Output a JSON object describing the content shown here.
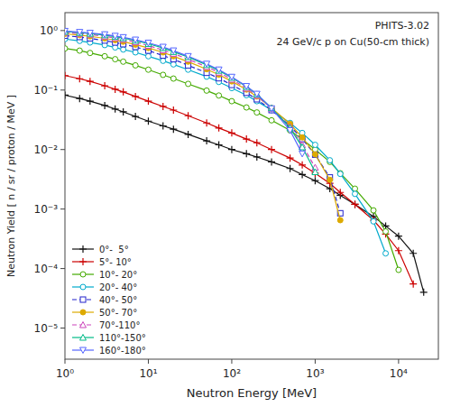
{
  "chart_data": {
    "type": "line",
    "log": true,
    "grid": false,
    "legend": "lower left",
    "annotations": [
      "PHITS-3.02",
      "24 GeV/c  p on Cu(50-cm thick)"
    ],
    "x_label": "Neutron Energy [MeV]",
    "y_label": "Neutron Yield [ n / sr / proton / MeV ]",
    "xlim": [
      1,
      30000
    ],
    "ylim": [
      3e-06,
      2
    ],
    "xticks": [
      {
        "value": 1,
        "label": "10⁰"
      },
      {
        "value": 10,
        "label": "10¹"
      },
      {
        "value": 100,
        "label": "10²"
      },
      {
        "value": 1000,
        "label": "10³"
      },
      {
        "value": 10000,
        "label": "10⁴"
      }
    ],
    "yticks": [
      {
        "value": 1e-05,
        "label": "10⁻⁵"
      },
      {
        "value": 0.0001,
        "label": "10⁻⁴"
      },
      {
        "value": 0.001,
        "label": "10⁻³"
      },
      {
        "value": 0.01,
        "label": "10⁻²"
      },
      {
        "value": 0.1,
        "label": "10⁻¹"
      },
      {
        "value": 1,
        "label": "10⁰"
      }
    ],
    "series": [
      {
        "name": "0°-  5°",
        "color": "#111111",
        "marker": "plus",
        "line_style": "solid",
        "x": [
          1,
          1.5,
          2,
          3,
          4,
          5,
          7,
          10,
          15,
          20,
          30,
          50,
          70,
          100,
          150,
          200,
          300,
          500,
          700,
          1000,
          1500,
          2000,
          3000,
          5000,
          7000,
          10000,
          15000,
          20000
        ],
        "values": [
          0.082,
          0.072,
          0.065,
          0.055,
          0.048,
          0.043,
          0.036,
          0.03,
          0.025,
          0.022,
          0.018,
          0.014,
          0.012,
          0.01,
          0.0085,
          0.0075,
          0.0062,
          0.0048,
          0.0038,
          0.003,
          0.0022,
          0.0017,
          0.0012,
          0.00075,
          0.00052,
          0.00035,
          0.00018,
          4e-05
        ]
      },
      {
        "name": "5°- 10°",
        "color": "#cc0000",
        "marker": "plus",
        "line_style": "solid",
        "x": [
          1,
          1.5,
          2,
          3,
          4,
          5,
          7,
          10,
          15,
          20,
          30,
          50,
          70,
          100,
          150,
          200,
          300,
          500,
          700,
          1000,
          1500,
          2000,
          3000,
          5000,
          7000,
          10000,
          15000
        ],
        "values": [
          0.175,
          0.155,
          0.14,
          0.118,
          0.103,
          0.093,
          0.078,
          0.065,
          0.053,
          0.046,
          0.037,
          0.028,
          0.023,
          0.019,
          0.015,
          0.013,
          0.01,
          0.0072,
          0.0055,
          0.004,
          0.0027,
          0.0019,
          0.0012,
          0.00065,
          0.00038,
          0.0002,
          5.5e-05
        ]
      },
      {
        "name": "10°- 20°",
        "color": "#44aa00",
        "marker": "circle-open",
        "line_style": "solid",
        "x": [
          1,
          1.5,
          2,
          3,
          4,
          5,
          7,
          10,
          15,
          20,
          30,
          50,
          70,
          100,
          150,
          200,
          300,
          500,
          700,
          1000,
          1500,
          2000,
          3000,
          5000,
          7000,
          10000
        ],
        "values": [
          0.5,
          0.46,
          0.42,
          0.37,
          0.33,
          0.3,
          0.26,
          0.22,
          0.18,
          0.156,
          0.127,
          0.098,
          0.081,
          0.065,
          0.051,
          0.042,
          0.031,
          0.021,
          0.015,
          0.01,
          0.0062,
          0.004,
          0.0022,
          0.00095,
          0.00042,
          9.5e-05
        ]
      },
      {
        "name": "20°- 40°",
        "color": "#00aacc",
        "marker": "circle-open",
        "line_style": "solid",
        "x": [
          1,
          1.5,
          2,
          3,
          4,
          5,
          7,
          10,
          15,
          20,
          30,
          50,
          70,
          100,
          150,
          200,
          300,
          500,
          700,
          1000,
          1500,
          2000,
          3000,
          5000,
          7000
        ],
        "values": [
          0.72,
          0.67,
          0.63,
          0.57,
          0.52,
          0.48,
          0.43,
          0.37,
          0.31,
          0.27,
          0.22,
          0.168,
          0.137,
          0.108,
          0.082,
          0.065,
          0.046,
          0.028,
          0.019,
          0.012,
          0.0066,
          0.0039,
          0.0018,
          0.00062,
          0.00018
        ]
      },
      {
        "name": "40°- 50°",
        "color": "#2222cc",
        "marker": "square-open",
        "line_style": "dashed",
        "x": [
          1,
          1.5,
          2,
          3,
          4,
          5,
          7,
          10,
          15,
          20,
          30,
          50,
          70,
          100,
          150,
          200,
          300,
          500,
          700,
          1000,
          1500,
          2000
        ],
        "values": [
          0.82,
          0.78,
          0.74,
          0.68,
          0.63,
          0.59,
          0.53,
          0.46,
          0.38,
          0.33,
          0.26,
          0.195,
          0.158,
          0.122,
          0.09,
          0.07,
          0.046,
          0.025,
          0.015,
          0.0082,
          0.0034,
          0.00085
        ]
      },
      {
        "name": "50°- 70°",
        "color": "#ddaa00",
        "marker": "circle",
        "line_style": "solid",
        "x": [
          1,
          1.5,
          2,
          3,
          4,
          5,
          7,
          10,
          15,
          20,
          30,
          50,
          70,
          100,
          150,
          200,
          300,
          500,
          700,
          1000,
          1500,
          2000
        ],
        "values": [
          0.88,
          0.84,
          0.8,
          0.74,
          0.69,
          0.65,
          0.58,
          0.51,
          0.43,
          0.37,
          0.3,
          0.224,
          0.181,
          0.14,
          0.102,
          0.078,
          0.05,
          0.027,
          0.016,
          0.0083,
          0.0031,
          0.00065
        ]
      },
      {
        "name": "70°-110°",
        "color": "#cc44bb",
        "marker": "triangle-up-open",
        "line_style": "dashed",
        "x": [
          1,
          1.5,
          2,
          3,
          4,
          5,
          7,
          10,
          15,
          20,
          30,
          50,
          70,
          100,
          150,
          200,
          300,
          500,
          700,
          1000
        ],
        "values": [
          0.93,
          0.89,
          0.86,
          0.8,
          0.75,
          0.71,
          0.64,
          0.56,
          0.47,
          0.41,
          0.33,
          0.246,
          0.198,
          0.151,
          0.107,
          0.081,
          0.049,
          0.024,
          0.012,
          0.005
        ]
      },
      {
        "name": "110°-150°",
        "color": "#00bb88",
        "marker": "triangle-up-open",
        "line_style": "solid",
        "x": [
          1,
          1.5,
          2,
          3,
          4,
          5,
          7,
          10,
          15,
          20,
          30,
          50,
          70,
          100,
          150,
          200,
          300,
          500,
          700,
          1000
        ],
        "values": [
          0.96,
          0.92,
          0.89,
          0.84,
          0.79,
          0.75,
          0.68,
          0.6,
          0.51,
          0.44,
          0.36,
          0.265,
          0.213,
          0.162,
          0.114,
          0.085,
          0.05,
          0.023,
          0.011,
          0.0042
        ]
      },
      {
        "name": "160°-180°",
        "color": "#5566ff",
        "marker": "triangle-down-open",
        "line_style": "solid",
        "x": [
          1,
          1.5,
          2,
          3,
          4,
          5,
          7,
          10,
          15,
          20,
          30,
          50,
          70,
          100,
          150,
          200,
          300,
          500,
          700
        ],
        "values": [
          0.98,
          0.94,
          0.91,
          0.86,
          0.81,
          0.77,
          0.7,
          0.62,
          0.53,
          0.46,
          0.37,
          0.275,
          0.22,
          0.166,
          0.116,
          0.086,
          0.049,
          0.021,
          0.0085
        ]
      }
    ]
  }
}
